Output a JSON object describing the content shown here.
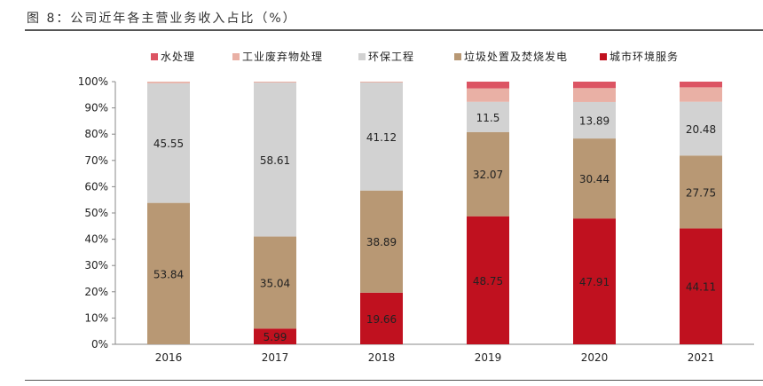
{
  "title": "图 8：公司近年各主营业务收入占比（%）",
  "chart_data": {
    "type": "bar",
    "stacked": true,
    "title": "图 8：公司近年各主营业务收入占比（%）",
    "categories": [
      "2016",
      "2017",
      "2018",
      "2019",
      "2020",
      "2021"
    ],
    "ylim": [
      0,
      100
    ],
    "yticks": [
      "0%",
      "10%",
      "20%",
      "30%",
      "40%",
      "50%",
      "60%",
      "70%",
      "80%",
      "90%",
      "100%"
    ],
    "legend_position": "top",
    "series": [
      {
        "name": "城市环境服务",
        "color": "#c0111f",
        "values": [
          0,
          5.99,
          19.66,
          48.75,
          47.91,
          44.11
        ],
        "labels": [
          "",
          "5.99",
          "19.66",
          "48.75",
          "47.91",
          "44.11"
        ]
      },
      {
        "name": "垃圾处置及焚烧发电",
        "color": "#b89874",
        "values": [
          53.84,
          35.04,
          38.89,
          32.07,
          30.44,
          27.75
        ],
        "labels": [
          "53.84",
          "35.04",
          "38.89",
          "32.07",
          "30.44",
          "27.75"
        ]
      },
      {
        "name": "环保工程",
        "color": "#d2d2d2",
        "values": [
          45.55,
          58.61,
          41.12,
          11.5,
          13.89,
          20.48
        ],
        "labels": [
          "45.55",
          "58.61",
          "41.12",
          "11.5",
          "13.89",
          "20.48"
        ]
      },
      {
        "name": "工业废弃物处理",
        "color": "#e9b0a5",
        "values": [
          0.61,
          0.36,
          0.33,
          5.1,
          5.3,
          5.5
        ],
        "labels": [
          "",
          "",
          "",
          "",
          "",
          ""
        ]
      },
      {
        "name": "水处理",
        "color": "#dc5463",
        "values": [
          0,
          0,
          0,
          2.58,
          2.46,
          2.16
        ],
        "labels": [
          "",
          "",
          "",
          "",
          "",
          ""
        ]
      }
    ],
    "legend_order": [
      4,
      3,
      2,
      1,
      0
    ]
  }
}
